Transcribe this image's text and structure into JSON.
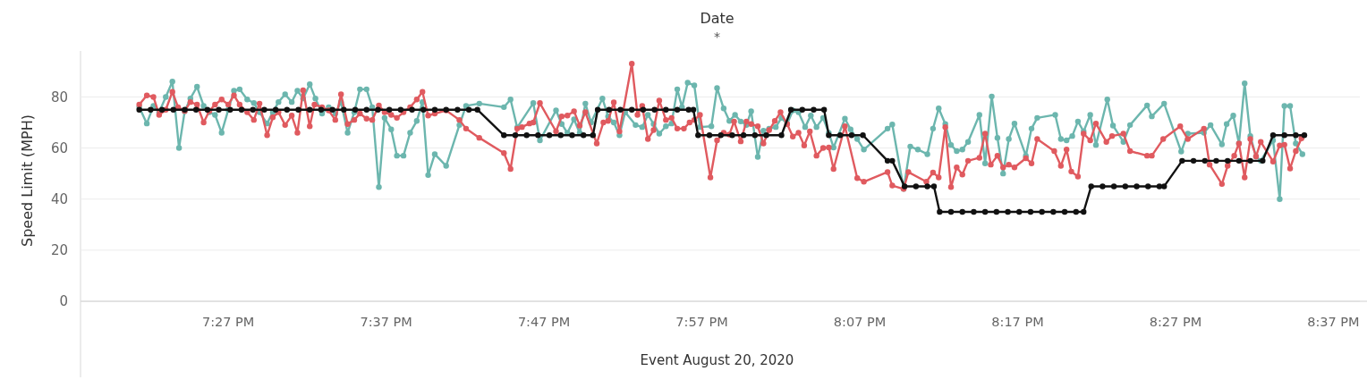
{
  "chart_data": {
    "type": "line",
    "title": "Date",
    "subtitle": "*",
    "xlabel": "Event August 20, 2020",
    "ylabel": "Speed Limit (MPH)",
    "xlim": [
      19.294,
      20.638
    ],
    "ylim": [
      0,
      98
    ],
    "xticks": [
      {
        "value": 19.45,
        "label": "7:27 PM"
      },
      {
        "value": 19.616667,
        "label": "7:37 PM"
      },
      {
        "value": 19.783333,
        "label": "7:47 PM"
      },
      {
        "value": 19.95,
        "label": "7:57 PM"
      },
      {
        "value": 20.116667,
        "label": "8:07 PM"
      },
      {
        "value": 20.283333,
        "label": "8:17 PM"
      },
      {
        "value": 20.45,
        "label": "8:27 PM"
      },
      {
        "value": 20.616667,
        "label": "8:37 PM"
      }
    ],
    "yticks": [
      0,
      20,
      40,
      60,
      80
    ],
    "grid": "y",
    "marker": "circle",
    "line_style": "solid",
    "series": [
      {
        "color": "#6cb6ae",
        "x": [
          19.356,
          19.364,
          19.371,
          19.377,
          19.384,
          19.391,
          19.398,
          19.404,
          19.41,
          19.417,
          19.424,
          19.43,
          19.436,
          19.443,
          19.45,
          19.456,
          19.462,
          19.47,
          19.477,
          19.483,
          19.491,
          19.497,
          19.503,
          19.51,
          19.517,
          19.523,
          19.529,
          19.536,
          19.542,
          19.549,
          19.556,
          19.563,
          19.569,
          19.576,
          19.583,
          19.589,
          19.596,
          19.602,
          19.609,
          19.615,
          19.622,
          19.628,
          19.635,
          19.642,
          19.649,
          19.655,
          19.661,
          19.668,
          19.68,
          19.694,
          19.701,
          19.715,
          19.741,
          19.748,
          19.755,
          19.772,
          19.779,
          19.796,
          19.802,
          19.808,
          19.815,
          19.821,
          19.827,
          19.833,
          19.845,
          19.851,
          19.857,
          19.863,
          19.869,
          19.88,
          19.887,
          19.893,
          19.899,
          19.905,
          19.912,
          19.918,
          19.924,
          19.929,
          19.935,
          19.942,
          19.948,
          19.96,
          19.966,
          19.973,
          19.979,
          19.985,
          19.991,
          19.997,
          20.002,
          20.009,
          20.015,
          20.021,
          20.028,
          20.034,
          20.04,
          20.046,
          20.052,
          20.059,
          20.065,
          20.071,
          20.078,
          20.084,
          20.089,
          20.101,
          20.107,
          20.114,
          20.121,
          20.146,
          20.151,
          20.163,
          20.17,
          20.178,
          20.188,
          20.194,
          20.2,
          20.207,
          20.213,
          20.219,
          20.225,
          20.231,
          20.243,
          20.249,
          20.256,
          20.262,
          20.268,
          20.274,
          20.28,
          20.292,
          20.298,
          20.304,
          20.323,
          20.329,
          20.335,
          20.341,
          20.347,
          20.353,
          20.36,
          20.366,
          20.378,
          20.384,
          20.395,
          20.402,
          20.42,
          20.425,
          20.438,
          20.456,
          20.463,
          20.48,
          20.487,
          20.499,
          20.504,
          20.511,
          20.517,
          20.523,
          20.529,
          20.535,
          20.54,
          20.553,
          20.56,
          20.565,
          20.571,
          20.577,
          20.584
        ],
        "values": [
          76,
          69.6,
          76.5,
          74,
          80,
          86,
          60,
          74.4,
          79.4,
          84,
          76.5,
          74,
          73,
          66,
          75,
          82.4,
          83,
          79,
          77.6,
          74,
          69.6,
          74,
          78,
          81,
          78,
          82.4,
          79.4,
          85,
          79.4,
          73.5,
          76,
          73.5,
          78,
          66,
          74,
          83,
          83,
          76,
          44.7,
          71.8,
          67.3,
          57,
          57,
          66,
          70.6,
          78,
          49.4,
          57.6,
          53,
          69,
          76.5,
          77.4,
          76,
          79,
          68,
          77.6,
          63,
          74.7,
          69.4,
          65.9,
          71.2,
          65.9,
          77.4,
          70,
          79.4,
          72.4,
          70,
          65,
          74,
          69,
          68.2,
          73,
          69.4,
          65.6,
          68.5,
          69.6,
          83,
          76,
          85.6,
          84.5,
          68.2,
          68.5,
          83.5,
          75.5,
          70.6,
          73,
          70.4,
          69,
          74.4,
          56.5,
          66.8,
          67.6,
          68.2,
          71.8,
          69.4,
          74.7,
          74,
          68.2,
          72.7,
          68.2,
          71.8,
          65.9,
          60.2,
          71.5,
          67.3,
          63.5,
          59.4,
          67.6,
          69.2,
          44,
          60.6,
          59.4,
          57.6,
          67.6,
          75.5,
          69.4,
          61.2,
          58.8,
          59.4,
          62.4,
          73,
          54,
          80.2,
          64,
          50,
          63.5,
          69.6,
          57,
          67.6,
          71.8,
          73,
          63.5,
          63,
          64.7,
          70.4,
          66.5,
          73,
          61.2,
          79,
          68.8,
          62.4,
          69,
          76.7,
          72.4,
          77.4,
          58.6,
          65.6,
          66,
          69,
          61.4,
          69.4,
          72.7,
          61.8,
          85.3,
          64.7,
          56.7,
          55,
          63,
          40,
          76.5,
          76.5,
          61.8,
          57.6
        ]
      },
      {
        "color": "#e05a5f",
        "x": [
          19.356,
          19.364,
          19.371,
          19.377,
          19.384,
          19.391,
          19.397,
          19.404,
          19.41,
          19.417,
          19.424,
          19.43,
          19.436,
          19.443,
          19.45,
          19.456,
          19.462,
          19.47,
          19.477,
          19.483,
          19.491,
          19.497,
          19.503,
          19.51,
          19.517,
          19.523,
          19.529,
          19.536,
          19.541,
          19.549,
          19.556,
          19.563,
          19.569,
          19.576,
          19.583,
          19.589,
          19.596,
          19.602,
          19.609,
          19.615,
          19.622,
          19.628,
          19.635,
          19.642,
          19.649,
          19.655,
          19.661,
          19.668,
          19.68,
          19.694,
          19.701,
          19.715,
          19.741,
          19.748,
          19.755,
          19.76,
          19.768,
          19.772,
          19.779,
          19.796,
          19.802,
          19.808,
          19.815,
          19.821,
          19.827,
          19.839,
          19.846,
          19.851,
          19.857,
          19.863,
          19.876,
          19.882,
          19.887,
          19.893,
          19.899,
          19.905,
          19.912,
          19.918,
          19.924,
          19.931,
          19.937,
          19.942,
          19.948,
          19.959,
          19.966,
          19.973,
          19.979,
          19.984,
          19.991,
          19.997,
          20.002,
          20.009,
          20.015,
          20.021,
          20.027,
          20.033,
          20.04,
          20.046,
          20.052,
          20.058,
          20.064,
          20.071,
          20.078,
          20.084,
          20.089,
          20.101,
          20.114,
          20.121,
          20.146,
          20.151,
          20.163,
          20.168,
          20.187,
          20.194,
          20.2,
          20.207,
          20.213,
          20.219,
          20.225,
          20.231,
          20.243,
          20.249,
          20.255,
          20.262,
          20.268,
          20.274,
          20.28,
          20.292,
          20.298,
          20.304,
          20.322,
          20.329,
          20.335,
          20.34,
          20.347,
          20.353,
          20.36,
          20.366,
          20.377,
          20.383,
          20.395,
          20.402,
          20.42,
          20.425,
          20.437,
          20.455,
          20.463,
          20.48,
          20.486,
          20.499,
          20.505,
          20.512,
          20.517,
          20.523,
          20.529,
          20.535,
          20.54,
          20.553,
          20.56,
          20.565,
          20.571,
          20.577,
          20.583
        ],
        "values": [
          77,
          80.6,
          80,
          73,
          75,
          82,
          76,
          74.5,
          78,
          77,
          70,
          74.5,
          77,
          79,
          77,
          80.6,
          77,
          74,
          71,
          77.4,
          65,
          72,
          74,
          69,
          72.7,
          66,
          82.6,
          68.5,
          77,
          76,
          74.7,
          71,
          81,
          69.4,
          71,
          73.5,
          71.5,
          71,
          76.7,
          74,
          73,
          71.8,
          74,
          76,
          79,
          82,
          72.7,
          73.5,
          74.7,
          71,
          67.6,
          64,
          58,
          51.8,
          67.6,
          68.2,
          69.6,
          70,
          77.6,
          66.5,
          72.4,
          72.7,
          74.4,
          68.8,
          74,
          61.8,
          70,
          70.6,
          77.9,
          66.5,
          93,
          73,
          76.5,
          63.5,
          67,
          78.6,
          71,
          71.8,
          67.6,
          67.6,
          70,
          71,
          73,
          48.5,
          63,
          66,
          65.3,
          70.4,
          62.6,
          70.4,
          69.4,
          68.5,
          61.8,
          67,
          70.6,
          74,
          69.4,
          64.5,
          66,
          61,
          66.5,
          57,
          60,
          60.2,
          51.8,
          68.5,
          48.2,
          46.8,
          50.6,
          45.3,
          44,
          50.6,
          46.8,
          50.4,
          48.5,
          68.2,
          44.7,
          52.4,
          49.6,
          55,
          56.2,
          65.6,
          53.5,
          57,
          52.4,
          53.5,
          52.4,
          56,
          54,
          63.5,
          58.8,
          53,
          59.4,
          50.8,
          48.8,
          65.6,
          63,
          69.6,
          62.4,
          64.7,
          65.6,
          58.8,
          57,
          57,
          63.5,
          68.5,
          63.5,
          67.6,
          53.5,
          45.9,
          53,
          57,
          61.8,
          48.5,
          63.5,
          56.7,
          62.4,
          54.7,
          61,
          61.3,
          52,
          58.8,
          63.8
        ]
      },
      {
        "color": "#111111",
        "x": [
          19.356,
          19.368,
          19.38,
          19.392,
          19.404,
          19.416,
          19.428,
          19.44,
          19.452,
          19.464,
          19.476,
          19.488,
          19.5,
          19.512,
          19.524,
          19.536,
          19.548,
          19.56,
          19.572,
          19.584,
          19.596,
          19.608,
          19.62,
          19.632,
          19.644,
          19.656,
          19.668,
          19.68,
          19.692,
          19.704,
          19.713,
          19.741,
          19.753,
          19.765,
          19.777,
          19.789,
          19.801,
          19.813,
          19.825,
          19.835,
          19.84,
          19.852,
          19.864,
          19.876,
          19.888,
          19.9,
          19.912,
          19.924,
          19.936,
          19.941,
          19.946,
          19.958,
          19.97,
          19.982,
          19.994,
          20.006,
          20.018,
          20.034,
          20.044,
          20.056,
          20.068,
          20.079,
          20.084,
          20.096,
          20.108,
          20.12,
          20.146,
          20.151,
          20.164,
          20.176,
          20.188,
          20.195,
          20.201,
          20.213,
          20.225,
          20.237,
          20.249,
          20.261,
          20.273,
          20.285,
          20.297,
          20.309,
          20.321,
          20.333,
          20.345,
          20.353,
          20.361,
          20.373,
          20.385,
          20.397,
          20.409,
          20.421,
          20.433,
          20.438,
          20.457,
          20.469,
          20.481,
          20.493,
          20.505,
          20.517,
          20.529,
          20.542,
          20.553,
          20.565,
          20.577,
          20.586
        ],
        "values": [
          75,
          75,
          75,
          75,
          75,
          75,
          75,
          75,
          75,
          75,
          75,
          75,
          75,
          75,
          75,
          75,
          75,
          75,
          75,
          75,
          75,
          75,
          75,
          75,
          75,
          75,
          75,
          75,
          75,
          75,
          75,
          65,
          65,
          65,
          65,
          65,
          65,
          65,
          65,
          65,
          75,
          75,
          75,
          75,
          75,
          75,
          75,
          75,
          75,
          75,
          65,
          65,
          65,
          65,
          65,
          65,
          65,
          65,
          75,
          75,
          75,
          75,
          65,
          65,
          65,
          65,
          55,
          55,
          45,
          45,
          45,
          45,
          35,
          35,
          35,
          35,
          35,
          35,
          35,
          35,
          35,
          35,
          35,
          35,
          35,
          35,
          45,
          45,
          45,
          45,
          45,
          45,
          45,
          45,
          55,
          55,
          55,
          55,
          55,
          55,
          55,
          55,
          65,
          65,
          65,
          65
        ]
      }
    ]
  }
}
